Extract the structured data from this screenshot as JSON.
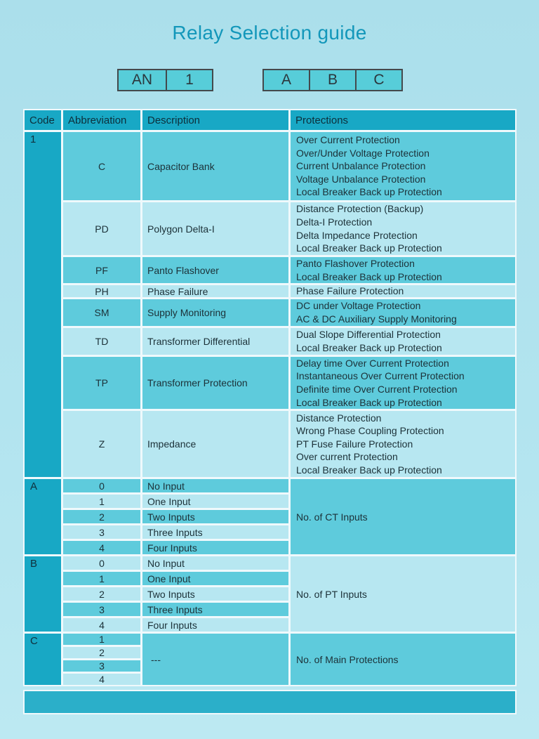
{
  "page": {
    "title": "Relay Selection guide"
  },
  "code_boxes": {
    "group1": {
      "cell1": "AN",
      "cell2": "1"
    },
    "group2": {
      "cell1": "A",
      "cell2": "B",
      "cell3": "C"
    }
  },
  "colors": {
    "page_bg": "#b2e4ef",
    "header_bg": "#18a8c5",
    "teal_row": "#5ecbdc",
    "light_row": "#b7e7f1",
    "title_text": "#1397ba",
    "footer_bar": "#2bafc9"
  },
  "table": {
    "headers": {
      "code": "Code",
      "abbreviation": "Abbreviation",
      "description": "Description",
      "protections": "Protections"
    },
    "sections": [
      {
        "code": "1",
        "rows": [
          {
            "abbr": "C",
            "desc": "Capacitor Bank",
            "prot": "Over Current Protection\nOver/Under Voltage Protection\nCurrent Unbalance Protection\nVoltage Unbalance Protection\nLocal Breaker Back up Protection"
          },
          {
            "abbr": "PD",
            "desc": "Polygon Delta-I",
            "prot": "Distance Protection (Backup)\nDelta-I Protection\nDelta Impedance Protection\nLocal Breaker Back up Protection"
          },
          {
            "abbr": "PF",
            "desc": "Panto Flashover",
            "prot": "Panto Flashover Protection\nLocal Breaker Back up Protection"
          },
          {
            "abbr": "PH",
            "desc": "Phase Failure",
            "prot": "Phase Failure Protection"
          },
          {
            "abbr": "SM",
            "desc": "Supply Monitoring",
            "prot": "DC under Voltage Protection\nAC & DC Auxiliary Supply Monitoring"
          },
          {
            "abbr": "TD",
            "desc": "Transformer Differential",
            "prot": "Dual Slope Differential Protection\nLocal Breaker Back up Protection"
          },
          {
            "abbr": "TP",
            "desc": "Transformer Protection",
            "prot": "Delay time Over Current Protection\nInstantaneous Over Current Protection\nDefinite time Over Current Protection\nLocal Breaker Back up Protection"
          },
          {
            "abbr": "Z",
            "desc": "Impedance",
            "prot": "Distance Protection\nWrong Phase Coupling Protection\nPT Fuse Failure Protection\nOver current Protection\nLocal Breaker Back up Protection"
          }
        ]
      },
      {
        "code": "A",
        "rows": [
          {
            "abbr": "0",
            "desc": "No Input"
          },
          {
            "abbr": "1",
            "desc": "One Input"
          },
          {
            "abbr": "2",
            "desc": "Two Inputs"
          },
          {
            "abbr": "3",
            "desc": "Three Inputs"
          },
          {
            "abbr": "4",
            "desc": "Four Inputs"
          }
        ],
        "merged_prot": "No. of CT Inputs"
      },
      {
        "code": "B",
        "rows": [
          {
            "abbr": "0",
            "desc": "No Input"
          },
          {
            "abbr": "1",
            "desc": "One Input"
          },
          {
            "abbr": "2",
            "desc": "Two Inputs"
          },
          {
            "abbr": "3",
            "desc": "Three Inputs"
          },
          {
            "abbr": "4",
            "desc": "Four Inputs"
          }
        ],
        "merged_prot": "No. of PT Inputs"
      },
      {
        "code": "C",
        "rows": [
          {
            "abbr": "1"
          },
          {
            "abbr": "2"
          },
          {
            "abbr": "3"
          },
          {
            "abbr": "4"
          }
        ],
        "merged_desc": "---",
        "merged_prot": "No. of Main Protections"
      }
    ]
  }
}
